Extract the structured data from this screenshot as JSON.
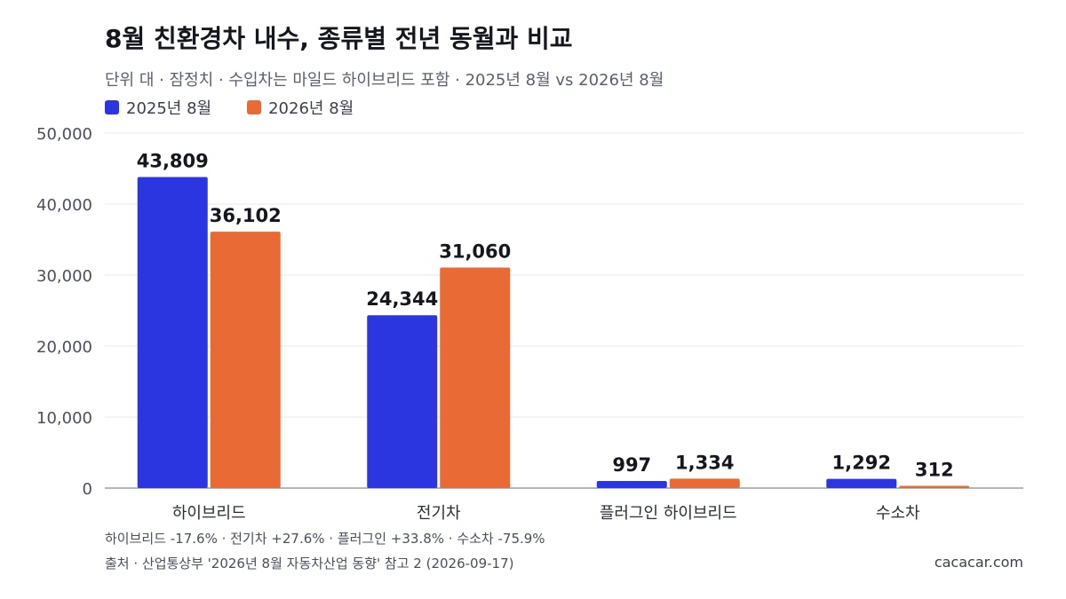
{
  "chart_data": {
    "type": "bar",
    "title": "8월 친환경차 내수, 종류별 전년 동월과 비교",
    "subtitle": "단위 대 · 잠정치 · 수입차는 마일드 하이브리드 포함 · 2025년 8월 vs 2026년 8월",
    "categories": [
      "하이브리드",
      "전기차",
      "플러그인 하이브리드",
      "수소차"
    ],
    "series": [
      {
        "name": "2025년 8월",
        "color": "#2b35e0",
        "values": [
          43809,
          24344,
          997,
          1292
        ],
        "labels": [
          "43,809",
          "24,344",
          "997",
          "1,292"
        ]
      },
      {
        "name": "2026년 8월",
        "color": "#ea6a35",
        "values": [
          36102,
          31060,
          1334,
          312
        ],
        "labels": [
          "36,102",
          "31,060",
          "1,334",
          "312"
        ]
      }
    ],
    "ylim": [
      0,
      50000
    ],
    "yticks": [
      0,
      10000,
      20000,
      30000,
      40000,
      50000
    ],
    "ytick_labels": [
      "0",
      "10,000",
      "20,000",
      "30,000",
      "40,000",
      "50,000"
    ],
    "legend_position": "top-left",
    "grid": true
  },
  "note": "하이브리드 -17.6% · 전기차 +27.6% · 플러그인 +33.8% · 수소차 -75.9%",
  "source": "출처 · 산업통상부 '2026년 8월 자동차산업 동향' 참고 2 (2026-09-17)",
  "brand": "cacacar.com"
}
